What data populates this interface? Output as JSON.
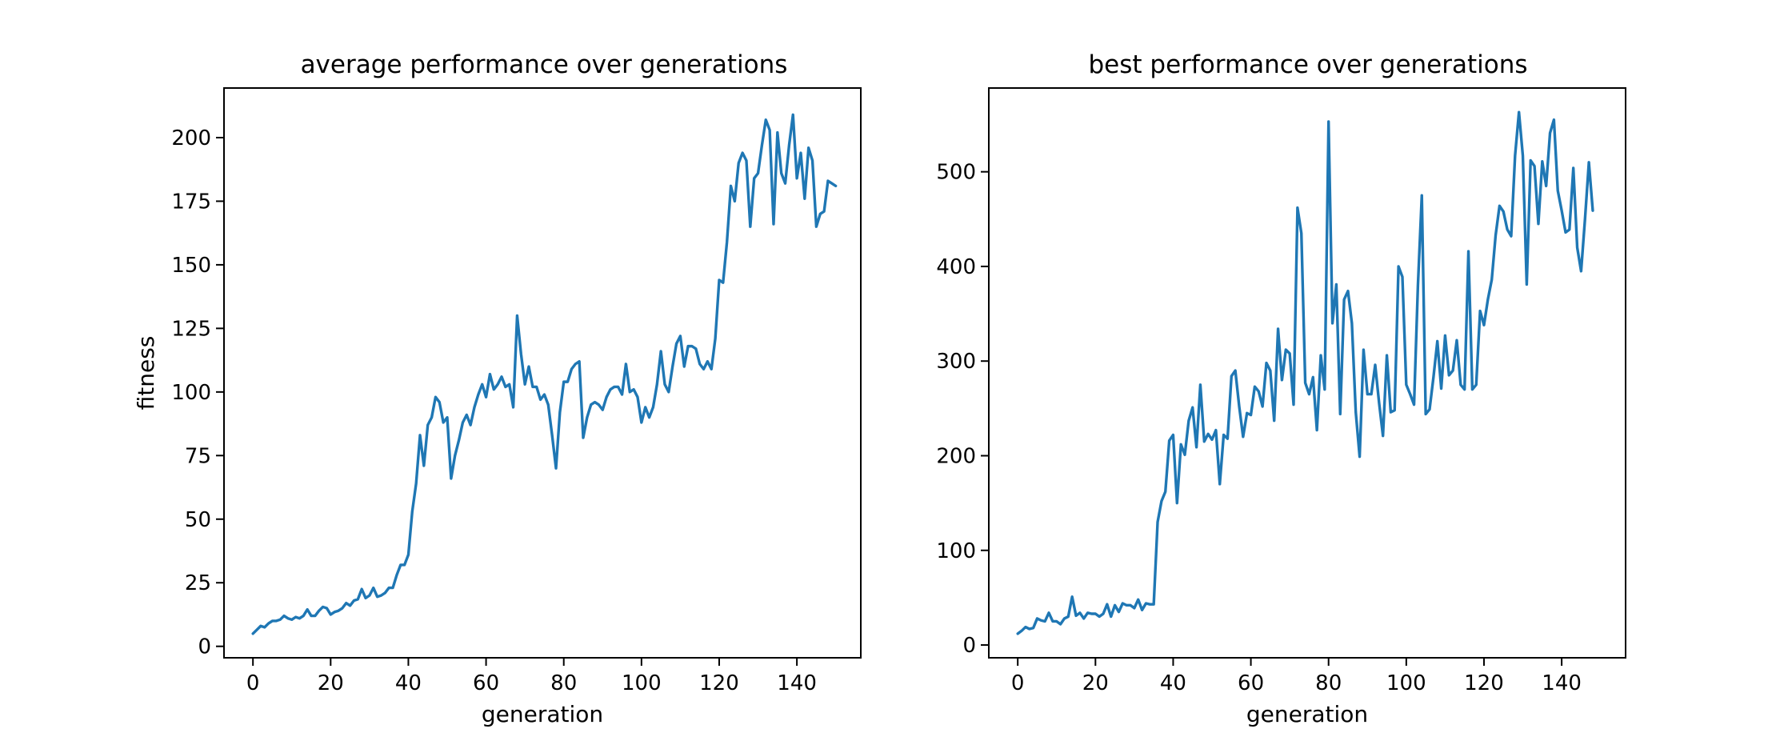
{
  "chart_data": [
    {
      "type": "line",
      "title": "average performance over generations",
      "xlabel": "generation",
      "ylabel": "fitness",
      "xlim": [
        -7.45,
        156.45
      ],
      "ylim": [
        -4.5,
        219.5
      ],
      "xticks": [
        0,
        20,
        40,
        60,
        80,
        100,
        120,
        140
      ],
      "yticks": [
        0,
        25,
        50,
        75,
        100,
        125,
        150,
        175,
        200
      ],
      "grid": false,
      "color": "#1f77b4",
      "x_start": 0,
      "values": [
        5,
        6.5,
        8,
        7.5,
        9,
        10,
        10,
        10.5,
        12,
        11,
        10.5,
        11.5,
        11,
        12,
        14.5,
        12,
        12,
        14,
        15.5,
        15,
        12.5,
        13.5,
        14,
        15,
        17,
        16,
        18,
        18.5,
        22.5,
        19,
        20,
        23,
        19.5,
        20,
        21,
        23,
        23,
        28,
        32,
        32,
        36,
        53,
        64,
        83,
        71,
        87,
        90,
        98,
        96,
        88,
        90,
        66,
        75,
        81,
        88,
        91,
        87,
        94,
        99,
        103,
        98,
        107,
        101,
        103,
        106,
        102,
        103,
        94,
        130,
        115,
        103,
        110,
        102,
        102,
        97,
        99,
        95,
        83,
        70,
        92,
        104,
        104,
        109,
        111,
        112,
        82,
        90,
        95,
        96,
        95,
        93,
        98,
        101,
        102,
        102,
        99,
        111,
        100,
        101,
        98,
        88,
        94,
        90,
        94,
        103,
        116,
        103,
        100,
        110,
        119,
        122,
        110,
        118,
        118,
        117,
        111,
        109,
        112,
        109,
        121,
        144,
        143,
        159,
        181,
        175,
        190,
        194,
        191,
        165,
        184,
        186,
        197,
        207,
        203,
        166,
        202,
        186,
        182,
        197,
        209,
        184,
        194,
        176,
        196,
        191,
        165,
        170,
        171,
        183,
        182,
        181
      ]
    },
    {
      "type": "line",
      "title": "best performance over generations",
      "xlabel": "generation",
      "ylabel": "",
      "xlim": [
        -7.45,
        156.45
      ],
      "ylim": [
        -13.5,
        588.5
      ],
      "xticks": [
        0,
        20,
        40,
        60,
        80,
        100,
        120,
        140
      ],
      "yticks": [
        0,
        100,
        200,
        300,
        400,
        500
      ],
      "grid": false,
      "color": "#1f77b4",
      "x_start": 0,
      "values": [
        12,
        15,
        19,
        17,
        18,
        28,
        26,
        25,
        34,
        25,
        25,
        22,
        28,
        30,
        51,
        31,
        34,
        28,
        34,
        33,
        33,
        30,
        33,
        43,
        30,
        42,
        35,
        44,
        42,
        42,
        39,
        48,
        37,
        44,
        43,
        43,
        130,
        152,
        162,
        216,
        222,
        150,
        212,
        201,
        237,
        251,
        209,
        275,
        215,
        223,
        217,
        227,
        170,
        222,
        218,
        284,
        290,
        252,
        220,
        245,
        243,
        273,
        268,
        252,
        298,
        290,
        237,
        334,
        280,
        312,
        308,
        254,
        462,
        435,
        277,
        265,
        283,
        227,
        306,
        270,
        553,
        340,
        381,
        244,
        365,
        374,
        340,
        246,
        199,
        312,
        265,
        265,
        296,
        256,
        221,
        306,
        246,
        248,
        400,
        389,
        275,
        265,
        254,
        380,
        475,
        244,
        249,
        283,
        321,
        271,
        327,
        285,
        290,
        322,
        275,
        270,
        416,
        270,
        275,
        353,
        338,
        365,
        386,
        433,
        464,
        458,
        439,
        432,
        517,
        563,
        517,
        381,
        512,
        506,
        445,
        511,
        485,
        541,
        555,
        480,
        459,
        436,
        439,
        504,
        420,
        395,
        450,
        510,
        459
      ]
    }
  ]
}
